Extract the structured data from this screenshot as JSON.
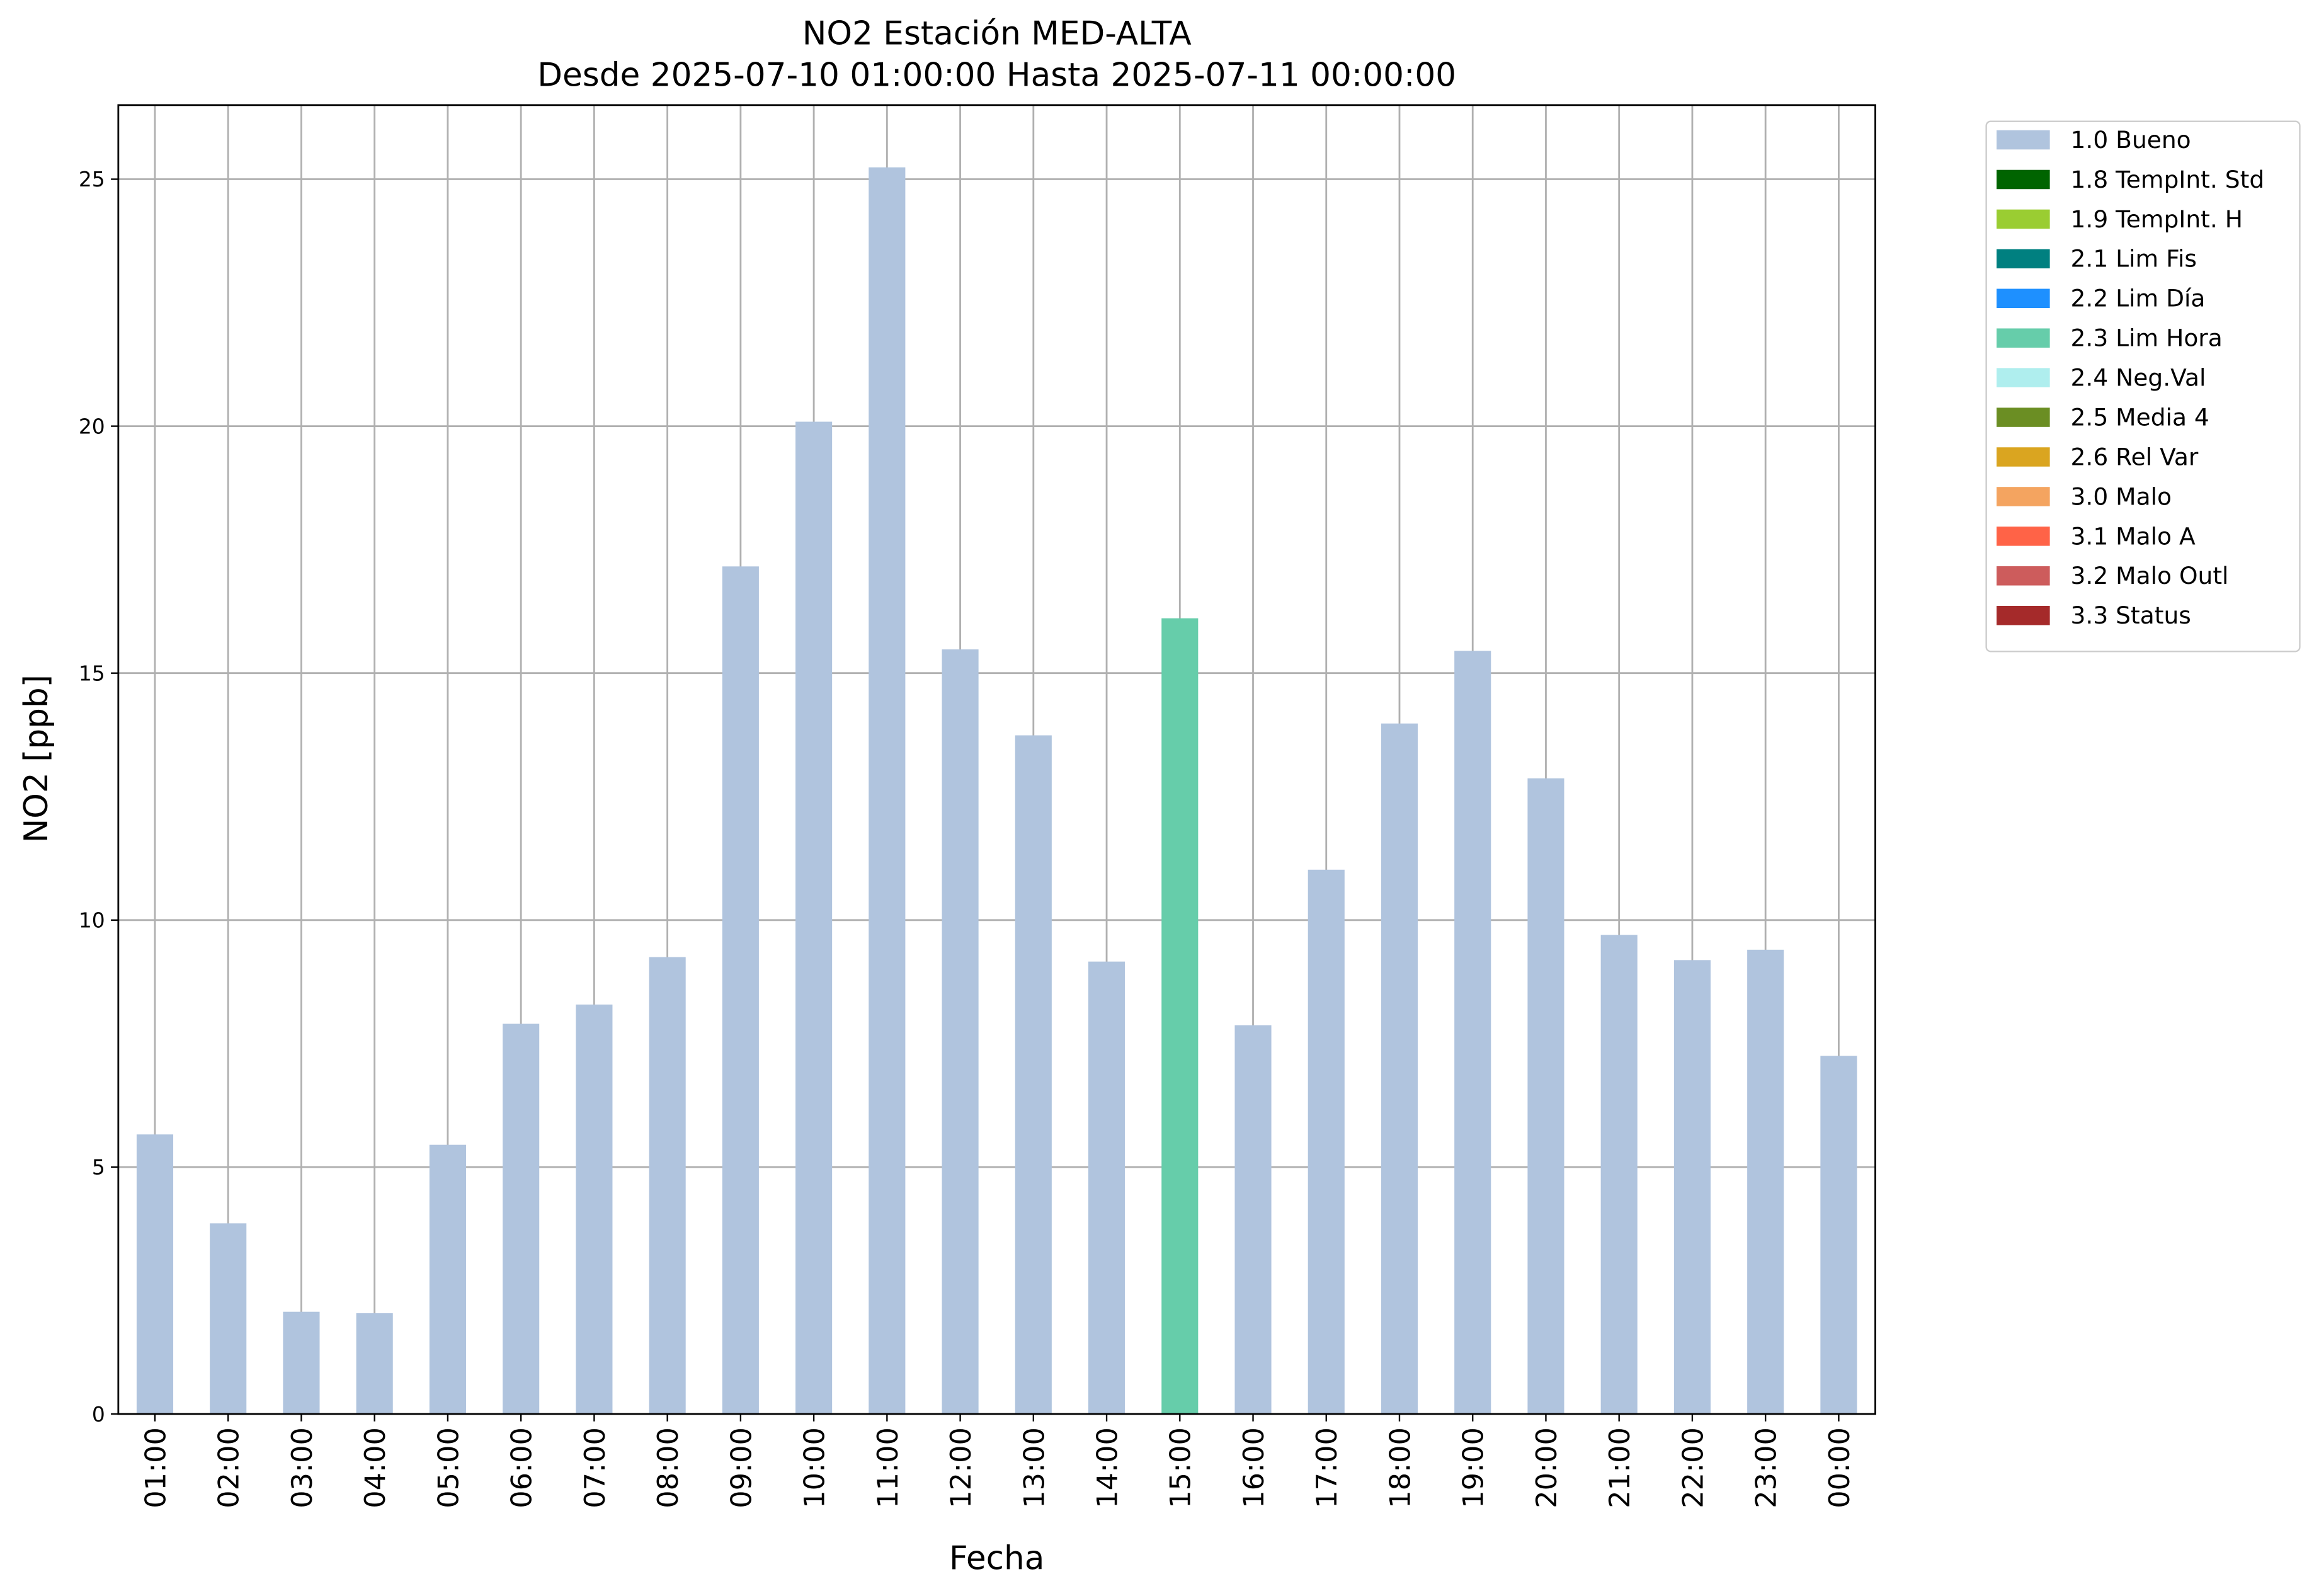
{
  "chart_data": {
    "type": "stacked_bar",
    "title": "NO2 Estación MED-ALTA",
    "subtitle": "Desde 2025-07-10 01:00:00 Hasta 2025-07-11 00:00:00",
    "x_label": "Fecha",
    "y_label": "NO2 [ppb]",
    "categories": [
      "01:00",
      "02:00",
      "03:00",
      "04:00",
      "05:00",
      "06:00",
      "07:00",
      "08:00",
      "09:00",
      "10:00",
      "11:00",
      "12:00",
      "13:00",
      "14:00",
      "15:00",
      "16:00",
      "17:00",
      "18:00",
      "19:00",
      "20:00",
      "21:00",
      "22:00",
      "23:00",
      "00:00"
    ],
    "series": [
      {
        "name": "1.0 Bueno",
        "color": "#b0c4de",
        "values": [
          5.66,
          3.86,
          2.07,
          2.04,
          5.45,
          7.9,
          8.29,
          9.25,
          17.16,
          20.09,
          25.24,
          15.48,
          13.74,
          9.16,
          null,
          7.87,
          11.02,
          13.98,
          15.45,
          12.87,
          9.7,
          9.19,
          9.4,
          7.25
        ]
      },
      {
        "name": "1.8 TempInt. Std",
        "color": "#006400",
        "values": [
          null,
          null,
          null,
          null,
          null,
          null,
          null,
          null,
          null,
          null,
          null,
          null,
          null,
          null,
          null,
          null,
          null,
          null,
          null,
          null,
          null,
          null,
          null,
          null
        ]
      },
      {
        "name": "1.9 TempInt. H",
        "color": "#9acd32",
        "values": [
          null,
          null,
          null,
          null,
          null,
          null,
          null,
          null,
          null,
          null,
          null,
          null,
          null,
          null,
          null,
          null,
          null,
          null,
          null,
          null,
          null,
          null,
          null,
          null
        ]
      },
      {
        "name": "2.1 Lim Fis",
        "color": "#008080",
        "values": [
          null,
          null,
          null,
          null,
          null,
          null,
          null,
          null,
          null,
          null,
          null,
          null,
          null,
          null,
          null,
          null,
          null,
          null,
          null,
          null,
          null,
          null,
          null,
          null
        ]
      },
      {
        "name": "2.2 Lim Día",
        "color": "#1e90ff",
        "values": [
          null,
          null,
          null,
          null,
          null,
          null,
          null,
          null,
          null,
          null,
          null,
          null,
          null,
          null,
          null,
          null,
          null,
          null,
          null,
          null,
          null,
          null,
          null,
          null
        ]
      },
      {
        "name": "2.3 Lim Hora",
        "color": "#66cdaa",
        "values": [
          null,
          null,
          null,
          null,
          null,
          null,
          null,
          null,
          null,
          null,
          null,
          null,
          null,
          null,
          16.11,
          null,
          null,
          null,
          null,
          null,
          null,
          null,
          null,
          null
        ]
      },
      {
        "name": "2.4 Neg.Val",
        "color": "#afeeee",
        "values": [
          null,
          null,
          null,
          null,
          null,
          null,
          null,
          null,
          null,
          null,
          null,
          null,
          null,
          null,
          null,
          null,
          null,
          null,
          null,
          null,
          null,
          null,
          null,
          null
        ]
      },
      {
        "name": "2.5 Media 4",
        "color": "#6b8e23",
        "values": [
          null,
          null,
          null,
          null,
          null,
          null,
          null,
          null,
          null,
          null,
          null,
          null,
          null,
          null,
          null,
          null,
          null,
          null,
          null,
          null,
          null,
          null,
          null,
          null
        ]
      },
      {
        "name": "2.6 Rel Var",
        "color": "#daa520",
        "values": [
          null,
          null,
          null,
          null,
          null,
          null,
          null,
          null,
          null,
          null,
          null,
          null,
          null,
          null,
          null,
          null,
          null,
          null,
          null,
          null,
          null,
          null,
          null,
          null
        ]
      },
      {
        "name": "3.0 Malo",
        "color": "#f4a460",
        "values": [
          null,
          null,
          null,
          null,
          null,
          null,
          null,
          null,
          null,
          null,
          null,
          null,
          null,
          null,
          null,
          null,
          null,
          null,
          null,
          null,
          null,
          null,
          null,
          null
        ]
      },
      {
        "name": "3.1 Malo A",
        "color": "#ff6347",
        "values": [
          null,
          null,
          null,
          null,
          null,
          null,
          null,
          null,
          null,
          null,
          null,
          null,
          null,
          null,
          null,
          null,
          null,
          null,
          null,
          null,
          null,
          null,
          null,
          null
        ]
      },
      {
        "name": "3.2 Malo Outl",
        "color": "#cd5c5c",
        "values": [
          null,
          null,
          null,
          null,
          null,
          null,
          null,
          null,
          null,
          null,
          null,
          null,
          null,
          null,
          null,
          null,
          null,
          null,
          null,
          null,
          null,
          null,
          null,
          null
        ]
      },
      {
        "name": "3.3 Status",
        "color": "#a52a2a",
        "values": [
          null,
          null,
          null,
          null,
          null,
          null,
          null,
          null,
          null,
          null,
          null,
          null,
          null,
          null,
          null,
          null,
          null,
          null,
          null,
          null,
          null,
          null,
          null,
          null
        ]
      }
    ],
    "ylim": [
      0,
      26.5
    ],
    "yticks": [
      0,
      5,
      10,
      15,
      20,
      25
    ],
    "grid": true,
    "legend": "outside-upper-right"
  }
}
